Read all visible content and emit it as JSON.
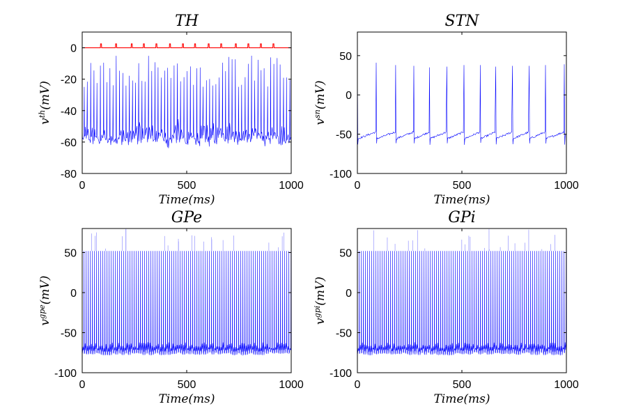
{
  "colors": {
    "trace": "#0000ff",
    "threshold": "#ff0000",
    "axes": "#000000"
  },
  "chart_data": [
    {
      "id": "th",
      "type": "line",
      "title": "TH",
      "xlabel": "Time(ms)",
      "ylabel_base": "v",
      "ylabel_sup": "th",
      "ylabel_unit": "(mV)",
      "xlim": [
        0,
        1000
      ],
      "ylim": [
        -80,
        10
      ],
      "xticks": [
        0,
        500,
        1000
      ],
      "yticks": [
        0,
        -20,
        -40,
        -60,
        -80
      ],
      "grid": false,
      "series": [
        {
          "kind": "membrane-potential",
          "color": "#0000ff",
          "baseline_mV": -55,
          "peak_mV": -5,
          "trough_mV": -62,
          "spike_count": 65
        },
        {
          "kind": "stimulus-pulses",
          "color": "#ff0000",
          "baseline_mV": 0,
          "pulse_height_mV": 2.5,
          "pulse_times_ms": [
            90,
            162,
            237,
            295,
            355,
            420,
            482,
            540,
            605,
            665,
            735,
            795,
            855,
            915
          ]
        }
      ]
    },
    {
      "id": "stn",
      "type": "line",
      "title": "STN",
      "xlabel": "Time(ms)",
      "ylabel_base": "v",
      "ylabel_sup": "sn",
      "ylabel_unit": "(mV)",
      "xlim": [
        0,
        1000
      ],
      "ylim": [
        -100,
        80
      ],
      "xticks": [
        0,
        500,
        1000
      ],
      "yticks": [
        50,
        0,
        -50,
        -100
      ],
      "grid": false,
      "series": [
        {
          "kind": "membrane-potential",
          "color": "#0000ff",
          "spike_times_ms": [
            0,
            90,
            183,
            270,
            345,
            428,
            510,
            588,
            662,
            742,
            822,
            900,
            990
          ],
          "spike_peaks_mV": [
            45,
            41,
            38,
            37,
            35,
            36,
            38,
            38,
            36,
            37,
            37,
            38,
            39
          ],
          "reset_mV": -60,
          "ramp_top_mV": -47
        }
      ]
    },
    {
      "id": "gpe",
      "type": "line",
      "title": "GPe",
      "xlabel": "Time(ms)",
      "ylabel_base": "v",
      "ylabel_sup": "gpe",
      "ylabel_unit": "(mV)",
      "xlim": [
        0,
        1000
      ],
      "ylim": [
        -100,
        80
      ],
      "xticks": [
        0,
        500,
        1000
      ],
      "yticks": [
        50,
        0,
        -50,
        -100
      ],
      "grid": false,
      "series": [
        {
          "kind": "membrane-potential",
          "color": "#0000ff",
          "peak_mV": 52,
          "trough_mV": -78,
          "band_top_mV": -62,
          "spike_count": 100,
          "max_peak_mV": 78
        }
      ]
    },
    {
      "id": "gpi",
      "type": "line",
      "title": "GPi",
      "xlabel": "Time(ms)",
      "ylabel_base": "v",
      "ylabel_sup": "gpi",
      "ylabel_unit": "(mV)",
      "xlim": [
        0,
        1000
      ],
      "ylim": [
        -100,
        80
      ],
      "xticks": [
        0,
        500,
        1000
      ],
      "yticks": [
        50,
        0,
        -50,
        -100
      ],
      "grid": false,
      "series": [
        {
          "kind": "membrane-potential",
          "color": "#0000ff",
          "peak_mV": 52,
          "trough_mV": -78,
          "band_top_mV": -62,
          "spike_count": 100,
          "max_peak_mV": 78
        }
      ]
    }
  ]
}
